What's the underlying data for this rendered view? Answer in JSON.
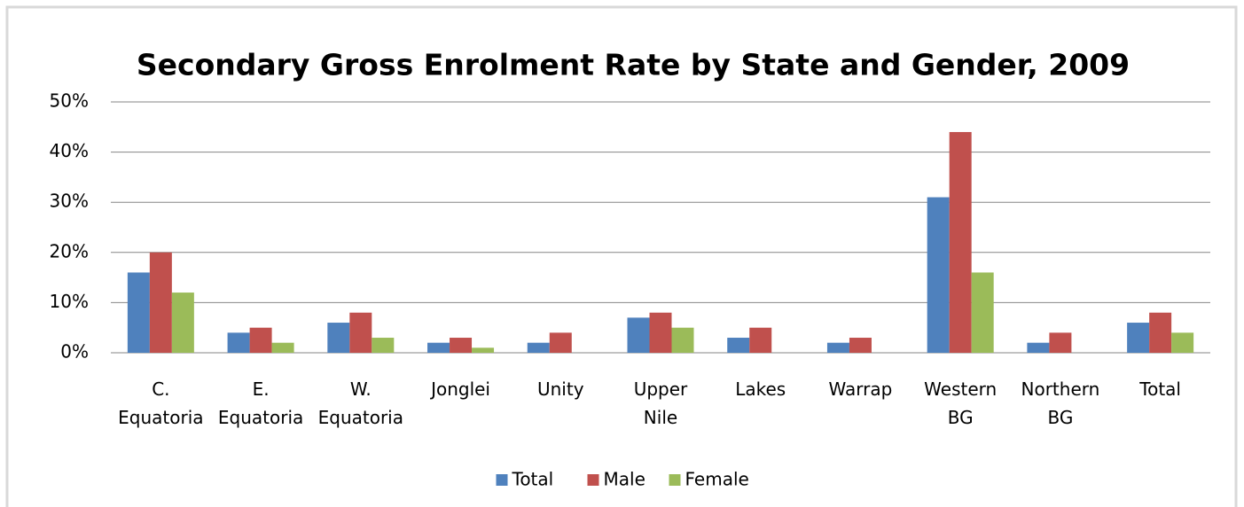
{
  "chart_data": {
    "type": "bar",
    "title": "Secondary Gross Enrolment Rate by State and Gender, 2009",
    "categories": [
      "C. Equatoria",
      "E. Equatoria",
      "W. Equatoria",
      "Jonglei",
      "Unity",
      "Upper Nile",
      "Lakes",
      "Warrap",
      "Western BG",
      "Northern BG",
      "Total"
    ],
    "series": [
      {
        "name": "Total",
        "color": "#4f81bd",
        "values": [
          16,
          4,
          6,
          2,
          2,
          7,
          3,
          2,
          31,
          2,
          6
        ]
      },
      {
        "name": "Male",
        "color": "#c0504d",
        "values": [
          20,
          5,
          8,
          3,
          4,
          8,
          5,
          3,
          44,
          4,
          8
        ]
      },
      {
        "name": "Female",
        "color": "#9bbb59",
        "values": [
          12,
          2,
          3,
          1,
          0,
          5,
          0,
          0,
          16,
          0,
          4
        ]
      }
    ],
    "ylim": [
      0,
      50
    ],
    "yticks": [
      {
        "value": 0,
        "label": "0%"
      },
      {
        "value": 10,
        "label": "10%"
      },
      {
        "value": 20,
        "label": "20%"
      },
      {
        "value": 30,
        "label": "30%"
      },
      {
        "value": 40,
        "label": "40%"
      },
      {
        "value": 50,
        "label": "50%"
      }
    ],
    "grid": true,
    "legend": "bottom"
  }
}
